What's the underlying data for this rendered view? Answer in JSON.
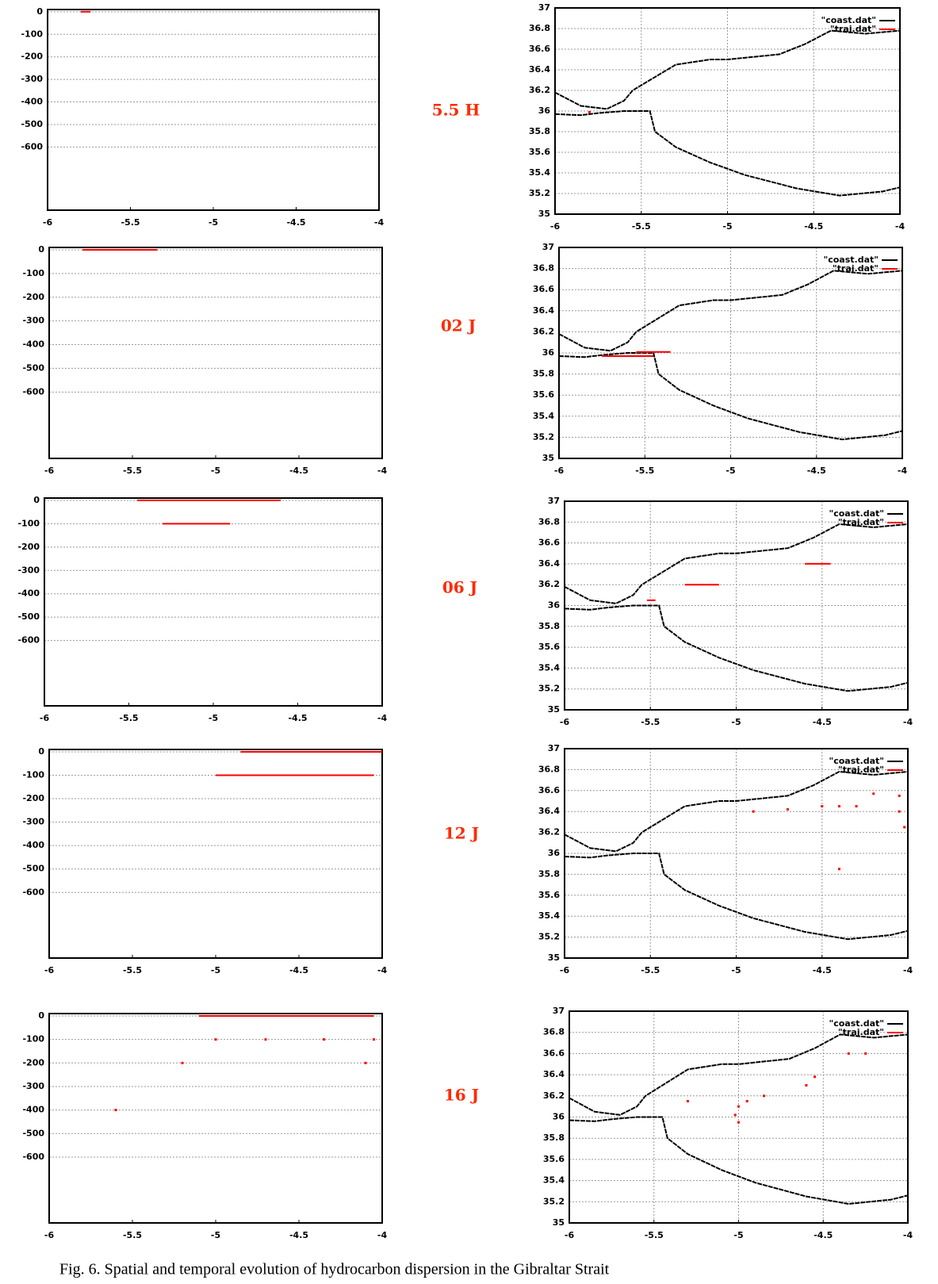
{
  "chart_data": [
    {
      "type": "line",
      "xlim": [
        -6,
        -4
      ],
      "ylim": [
        -880,
        10
      ],
      "xticks": [
        -6,
        -5.5,
        -5,
        -4.5,
        -4
      ],
      "yticks": [
        0,
        -100,
        -200,
        -300,
        -400,
        -500,
        -600
      ],
      "grid": true,
      "series": [
        {
          "color": "#ff0000",
          "style": "line",
          "x": [
            -5.8,
            -5.74
          ],
          "values": [
            0,
            0
          ]
        }
      ]
    },
    {
      "type": "line",
      "xlim": [
        -6,
        -4
      ],
      "ylim": [
        -880,
        10
      ],
      "xticks": [
        -6,
        -5.5,
        -5,
        -4.5,
        -4
      ],
      "yticks": [
        0,
        -100,
        -200,
        -300,
        -400,
        -500,
        -600
      ],
      "grid": true,
      "series": [
        {
          "color": "#ff0000",
          "style": "line",
          "x": [
            -5.8,
            -5.35
          ],
          "values": [
            0,
            0
          ]
        }
      ]
    },
    {
      "type": "line",
      "xlim": [
        -6,
        -4
      ],
      "ylim": [
        -880,
        10
      ],
      "xticks": [
        -6,
        -5.5,
        -5,
        -4.5,
        -4
      ],
      "yticks": [
        0,
        -100,
        -200,
        -300,
        -400,
        -500,
        -600
      ],
      "grid": true,
      "series": [
        {
          "color": "#ff0000",
          "style": "line",
          "x": [
            -5.45,
            -4.6,
            null,
            -5.3,
            -4.9
          ],
          "values": [
            0,
            0,
            null,
            -100,
            -100
          ]
        }
      ]
    },
    {
      "type": "line",
      "xlim": [
        -6,
        -4
      ],
      "ylim": [
        -880,
        10
      ],
      "xticks": [
        -6,
        -5.5,
        -5,
        -4.5,
        -4
      ],
      "yticks": [
        0,
        -100,
        -200,
        -300,
        -400,
        -500,
        -600
      ],
      "grid": true,
      "series": [
        {
          "color": "#ff0000",
          "style": "line",
          "x": [
            -4.85,
            -4.0,
            null,
            -5.0,
            -4.05
          ],
          "values": [
            0,
            0,
            null,
            -100,
            -100
          ]
        }
      ]
    },
    {
      "type": "line",
      "xlim": [
        -6,
        -4
      ],
      "ylim": [
        -880,
        10
      ],
      "xticks": [
        -6,
        -5.5,
        -5,
        -4.5,
        -4
      ],
      "yticks": [
        0,
        -100,
        -200,
        -300,
        -400,
        -500,
        -600
      ],
      "grid": true,
      "series": [
        {
          "color": "#ff0000",
          "style": "line",
          "x": [
            -5.1,
            -4.05
          ],
          "values": [
            0,
            0
          ]
        },
        {
          "color": "#ff0000",
          "style": "points",
          "x": [
            -5.0,
            -4.7,
            -4.35,
            -4.05,
            -5.2,
            -4.1,
            -5.6
          ],
          "values": [
            -100,
            -100,
            -100,
            -100,
            -200,
            -200,
            -400
          ]
        }
      ]
    },
    {
      "type": "line",
      "xlim": [
        -6,
        -4
      ],
      "ylim": [
        35,
        37
      ],
      "xticks": [
        -6,
        -5.5,
        -5,
        -4.5,
        -4
      ],
      "yticks": [
        35,
        35.2,
        35.4,
        35.6,
        35.8,
        36,
        36.2,
        36.4,
        36.6,
        36.8,
        37
      ],
      "grid": true,
      "series": [
        {
          "name": "\"coast.dat\"",
          "color": "#000000",
          "style": "line",
          "x": [
            -6,
            -5.85,
            -5.7,
            -5.6,
            -5.55,
            -5.45,
            -5.3,
            -5.1,
            -5,
            -4.7,
            -4.55,
            -4.4,
            -4.2,
            -4,
            null,
            -6,
            -5.85,
            -5.75,
            -5.6,
            -5.45,
            -5.42,
            -5.3,
            -5.1,
            -4.9,
            -4.6,
            -4.35,
            -4.1,
            -4
          ],
          "values": [
            36.18,
            36.05,
            36.02,
            36.1,
            36.2,
            36.3,
            36.45,
            36.5,
            36.5,
            36.55,
            36.65,
            36.78,
            36.75,
            36.78,
            null,
            35.97,
            35.96,
            35.98,
            36.0,
            36.0,
            35.8,
            35.65,
            35.5,
            35.38,
            35.25,
            35.18,
            35.22,
            35.26
          ]
        },
        {
          "name": "\"traj.dat\"",
          "color": "#ff0000",
          "style": "points",
          "x": [
            -5.8
          ],
          "values": [
            35.99
          ]
        }
      ]
    },
    {
      "type": "line",
      "xlim": [
        -6,
        -4
      ],
      "ylim": [
        35,
        37
      ],
      "xticks": [
        -6,
        -5.5,
        -5,
        -4.5,
        -4
      ],
      "yticks": [
        35,
        35.2,
        35.4,
        35.6,
        35.8,
        36,
        36.2,
        36.4,
        36.6,
        36.8,
        37
      ],
      "grid": true,
      "series": [
        {
          "name": "\"coast.dat\"",
          "color": "#000000",
          "style": "line",
          "x": [
            -6,
            -5.85,
            -5.7,
            -5.6,
            -5.55,
            -5.45,
            -5.3,
            -5.1,
            -5,
            -4.7,
            -4.55,
            -4.4,
            -4.2,
            -4,
            null,
            -6,
            -5.85,
            -5.75,
            -5.6,
            -5.45,
            -5.42,
            -5.3,
            -5.1,
            -4.9,
            -4.6,
            -4.35,
            -4.1,
            -4
          ],
          "values": [
            36.18,
            36.05,
            36.02,
            36.1,
            36.2,
            36.3,
            36.45,
            36.5,
            36.5,
            36.55,
            36.65,
            36.78,
            36.75,
            36.78,
            null,
            35.97,
            35.96,
            35.98,
            36.0,
            36.0,
            35.8,
            35.65,
            35.5,
            35.38,
            35.25,
            35.18,
            35.22,
            35.26
          ]
        },
        {
          "name": "\"traj.dat\"",
          "color": "#ff0000",
          "style": "line",
          "x": [
            -5.75,
            -5.45,
            null,
            -5.55,
            -5.35
          ],
          "values": [
            35.97,
            35.97,
            null,
            36.01,
            36.01
          ]
        }
      ]
    },
    {
      "type": "line",
      "xlim": [
        -6,
        -4
      ],
      "ylim": [
        35,
        37
      ],
      "xticks": [
        -6,
        -5.5,
        -5,
        -4.5,
        -4
      ],
      "yticks": [
        35,
        35.2,
        35.4,
        35.6,
        35.8,
        36,
        36.2,
        36.4,
        36.6,
        36.8,
        37
      ],
      "grid": true,
      "series": [
        {
          "name": "\"coast.dat\"",
          "color": "#000000",
          "style": "line",
          "x": [
            -6,
            -5.85,
            -5.7,
            -5.6,
            -5.55,
            -5.45,
            -5.3,
            -5.1,
            -5,
            -4.7,
            -4.55,
            -4.4,
            -4.2,
            -4,
            null,
            -6,
            -5.85,
            -5.75,
            -5.6,
            -5.45,
            -5.42,
            -5.3,
            -5.1,
            -4.9,
            -4.6,
            -4.35,
            -4.1,
            -4
          ],
          "values": [
            36.18,
            36.05,
            36.02,
            36.1,
            36.2,
            36.3,
            36.45,
            36.5,
            36.5,
            36.55,
            36.65,
            36.78,
            36.75,
            36.78,
            null,
            35.97,
            35.96,
            35.98,
            36.0,
            36.0,
            35.8,
            35.65,
            35.5,
            35.38,
            35.25,
            35.18,
            35.22,
            35.26
          ]
        },
        {
          "name": "\"traj.dat\"",
          "color": "#ff0000",
          "style": "line",
          "x": [
            -4.6,
            -4.45,
            null,
            -5.3,
            -5.1,
            null,
            -5.52,
            -5.47
          ],
          "values": [
            36.4,
            36.4,
            null,
            36.2,
            36.2,
            null,
            36.05,
            36.05
          ]
        }
      ]
    },
    {
      "type": "line",
      "xlim": [
        -6,
        -4
      ],
      "ylim": [
        35,
        37
      ],
      "xticks": [
        -6,
        -5.5,
        -5,
        -4.5,
        -4
      ],
      "yticks": [
        35,
        35.2,
        35.4,
        35.6,
        35.8,
        36,
        36.2,
        36.4,
        36.6,
        36.8,
        37
      ],
      "grid": true,
      "series": [
        {
          "name": "\"coast.dat\"",
          "color": "#000000",
          "style": "line",
          "x": [
            -6,
            -5.85,
            -5.7,
            -5.6,
            -5.55,
            -5.45,
            -5.3,
            -5.1,
            -5,
            -4.7,
            -4.55,
            -4.4,
            -4.2,
            -4,
            null,
            -6,
            -5.85,
            -5.75,
            -5.6,
            -5.45,
            -5.42,
            -5.3,
            -5.1,
            -4.9,
            -4.6,
            -4.35,
            -4.1,
            -4
          ],
          "values": [
            36.18,
            36.05,
            36.02,
            36.1,
            36.2,
            36.3,
            36.45,
            36.5,
            36.5,
            36.55,
            36.65,
            36.78,
            36.75,
            36.78,
            null,
            35.97,
            35.96,
            35.98,
            36.0,
            36.0,
            35.8,
            35.65,
            35.5,
            35.38,
            35.25,
            35.18,
            35.22,
            35.26
          ]
        },
        {
          "name": "\"traj.dat\"",
          "color": "#ff0000",
          "style": "points",
          "x": [
            -4.5,
            -4.4,
            -4.3,
            -4.2,
            -4.05,
            -4.05,
            -4.02,
            -4.7,
            -4.9,
            -4.4
          ],
          "values": [
            36.45,
            36.45,
            36.45,
            36.57,
            36.55,
            36.4,
            36.25,
            36.42,
            36.4,
            35.85
          ]
        }
      ]
    },
    {
      "type": "line",
      "xlim": [
        -6,
        -4
      ],
      "ylim": [
        35,
        37
      ],
      "xticks": [
        -6,
        -5.5,
        -5,
        -4.5,
        -4
      ],
      "yticks": [
        35,
        35.2,
        35.4,
        35.6,
        35.8,
        36,
        36.2,
        36.4,
        36.6,
        36.8,
        37
      ],
      "grid": true,
      "series": [
        {
          "name": "\"coast.dat\"",
          "color": "#000000",
          "style": "line",
          "x": [
            -6,
            -5.85,
            -5.7,
            -5.6,
            -5.55,
            -5.45,
            -5.3,
            -5.1,
            -5,
            -4.7,
            -4.55,
            -4.4,
            -4.2,
            -4,
            null,
            -6,
            -5.85,
            -5.75,
            -5.6,
            -5.45,
            -5.42,
            -5.3,
            -5.1,
            -4.9,
            -4.6,
            -4.35,
            -4.1,
            -4
          ],
          "values": [
            36.18,
            36.05,
            36.02,
            36.1,
            36.2,
            36.3,
            36.45,
            36.5,
            36.5,
            36.55,
            36.65,
            36.78,
            36.75,
            36.78,
            null,
            35.97,
            35.96,
            35.98,
            36.0,
            36.0,
            35.8,
            35.65,
            35.5,
            35.38,
            35.25,
            35.18,
            35.22,
            35.26
          ]
        },
        {
          "name": "\"traj.dat\"",
          "color": "#ff0000",
          "style": "points",
          "x": [
            -5.0,
            -5.02,
            -5.0,
            -4.95,
            -4.85,
            -5.3,
            -4.6,
            -4.35,
            -4.25,
            -4.55
          ],
          "values": [
            35.95,
            36.02,
            36.1,
            36.15,
            36.2,
            36.15,
            36.3,
            36.6,
            36.6,
            36.38
          ]
        }
      ]
    }
  ],
  "row_labels": [
    "5.5 H",
    "02 J",
    "06 J",
    "12 J",
    "16 J"
  ],
  "caption": "Fig. 6. Spatial and temporal evolution of hydrocarbon dispersion in the Gibraltar Strait"
}
